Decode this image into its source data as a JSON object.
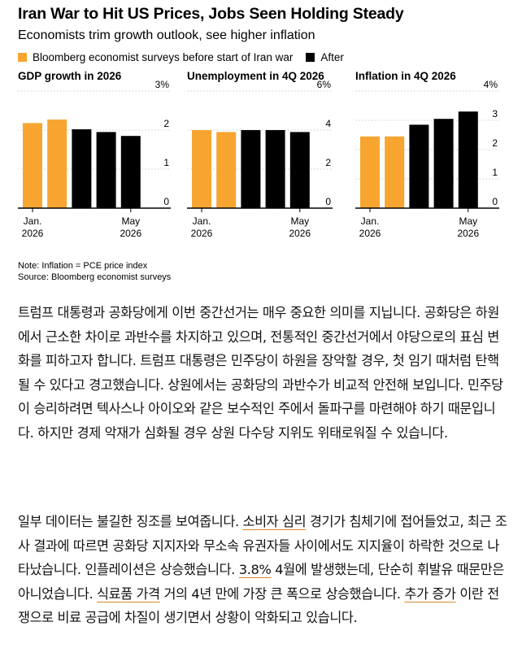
{
  "chart_header": {
    "title": "Iran War to Hit US Prices, Jobs Seen Holding Steady",
    "subtitle": "Economists trim growth outlook, see higher inflation"
  },
  "chart_data": [
    {
      "type": "bar",
      "title": "GDP growth in 2026",
      "x_start_label": [
        "Jan.",
        "2026"
      ],
      "x_end_label": [
        "May",
        "2026"
      ],
      "values": [
        2.18,
        2.27,
        2.02,
        1.95,
        1.85
      ],
      "groups": [
        "before",
        "before",
        "after",
        "after",
        "after"
      ],
      "ylim": [
        0,
        3
      ],
      "yticks": [
        "0",
        "1",
        "2",
        "3%"
      ]
    },
    {
      "type": "bar",
      "title": "Unemployment in 4Q 2026",
      "x_start_label": [
        "Jan.",
        "2026"
      ],
      "x_end_label": [
        "May",
        "2026"
      ],
      "values": [
        4.0,
        3.9,
        4.0,
        4.0,
        3.9
      ],
      "groups": [
        "before",
        "before",
        "after",
        "after",
        "after"
      ],
      "ylim": [
        0,
        6
      ],
      "yticks": [
        "0",
        "2",
        "4",
        "6%"
      ]
    },
    {
      "type": "bar",
      "title": "Inflation in 4Q 2026",
      "x_start_label": [
        "Jan.",
        "2026"
      ],
      "x_end_label": [
        "May",
        "2026"
      ],
      "values": [
        2.45,
        2.45,
        2.85,
        3.05,
        3.3
      ],
      "groups": [
        "before",
        "before",
        "after",
        "after",
        "after"
      ],
      "ylim": [
        0,
        4
      ],
      "yticks": [
        "0",
        "1",
        "2",
        "3",
        "4%"
      ]
    }
  ],
  "legend": {
    "before": {
      "label": "Bloomberg economist surveys before start of Iran war",
      "color": "#f7a530"
    },
    "after": {
      "label": "After",
      "color": "#000000"
    }
  },
  "footnotes": {
    "note": "Note: Inflation = PCE price index",
    "source": "Source: Bloomberg economist surveys"
  },
  "article": {
    "p1": "트럼프 대통령과 공화당에게 이번 중간선거는 매우 중요한 의미를 지닙니다. 공화당은 하원에서 근소한 차이로 과반수를 차지하고 있으며, 전통적인 중간선거에서 야당으로의 표심 변화를 피하고자 합니다. 트럼프 대통령은 민주당이 하원을 장악할 경우, 첫 임기 때처럼 탄핵될 수 있다고 경고했습니다. 상원에서는 공화당의 과반수가 비교적 안전해 보입니다. 민주당이 승리하려면 텍사스나 아이오와 같은 보수적인 주에서 돌파구를 마련해야 하기 때문입니다. 하지만 경제 악재가 심화될 경우 상원 다수당 지위도 위태로워질 수 있습니다.",
    "p2_a": "일부 데이터는 불길한 징조를 보여줍니다. ",
    "p2_link1": "소비자 심리",
    "p2_b": " 경기가 침체기에 접어들었고, 최근 조사 결과에 따르면 공화당 지지자와 무소속 유권자들 사이에서도 지지율이 하락한 것으로 나타났습니다. 인플레이션은 상승했습니다. ",
    "p2_link2": "3.8%",
    "p2_c": " 4월에 발생했는데, 단순히 휘발유 때문만은 아니었습니다. ",
    "p2_link3": "식료품 가격",
    "p2_d": " 거의 4년 만에 가장 큰 폭으로 상승했습니다. ",
    "p2_link4": "추가 증가",
    "p2_e": " 이란 전쟁으로 비료 공급에 차질이 생기면서 상황이 악화되고 있습니다."
  }
}
